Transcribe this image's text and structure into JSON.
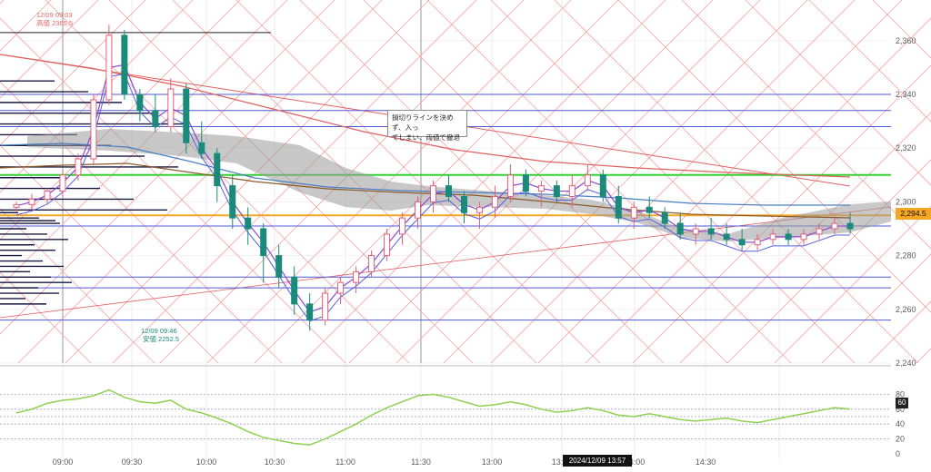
{
  "price_axis_labels": [
    "2,360",
    "2,340",
    "2,320",
    "2,300",
    "2,280",
    "2,260",
    "2,240"
  ],
  "rsi_axis_labels": [
    "80",
    "60",
    "40",
    "20",
    "0"
  ],
  "time_axis_labels": [
    "09:00",
    "09:30",
    "10:00",
    "10:30",
    "11:00",
    "11:30",
    "13:00",
    "13:30",
    "14:00",
    "14:30"
  ],
  "current_price_label": "2,294.5",
  "rsi_current_label": "60",
  "crosshair_time_label": "2024/12/09 13:57",
  "high_annotation": {
    "time": "12/09 09:03",
    "text": "高値 2365.5"
  },
  "low_annotation": {
    "time": "12/09 09:46",
    "text": "安値 2252.5"
  },
  "note": {
    "line1": "損切りラインを決めず、入っ",
    "line2": "てしまい、両値で撤退"
  },
  "colors": {
    "up": "#e0607e",
    "down": "#1a8a7a",
    "bg": "#ffffff",
    "current": "#f5a623",
    "rsi": "#8fd14f"
  },
  "chart_data": {
    "type": "candlestick",
    "ylim": [
      2240,
      2365
    ],
    "rsi_ylim": [
      0,
      100
    ],
    "horizontal_levels": [
      2340,
      2334,
      2328,
      2310,
      2295,
      2291,
      2272,
      2268,
      2256
    ],
    "current_price": 2294.5,
    "candles": [
      [
        2298,
        2300,
        2296,
        2299
      ],
      [
        2299,
        2303,
        2297,
        2301
      ],
      [
        2301,
        2305,
        2299,
        2304
      ],
      [
        2304,
        2312,
        2302,
        2310
      ],
      [
        2310,
        2318,
        2308,
        2316
      ],
      [
        2316,
        2340,
        2314,
        2338
      ],
      [
        2338,
        2366,
        2336,
        2362
      ],
      [
        2362,
        2364,
        2338,
        2340
      ],
      [
        2340,
        2342,
        2330,
        2334
      ],
      [
        2334,
        2340,
        2326,
        2328
      ],
      [
        2328,
        2346,
        2326,
        2342
      ],
      [
        2342,
        2344,
        2318,
        2322
      ],
      [
        2322,
        2330,
        2316,
        2318
      ],
      [
        2318,
        2320,
        2300,
        2306
      ],
      [
        2306,
        2310,
        2290,
        2294
      ],
      [
        2294,
        2298,
        2284,
        2290
      ],
      [
        2290,
        2292,
        2270,
        2280
      ],
      [
        2280,
        2284,
        2268,
        2272
      ],
      [
        2272,
        2276,
        2258,
        2262
      ],
      [
        2262,
        2266,
        2252,
        2256
      ],
      [
        2256,
        2268,
        2254,
        2266
      ],
      [
        2266,
        2272,
        2262,
        2270
      ],
      [
        2270,
        2276,
        2266,
        2274
      ],
      [
        2274,
        2282,
        2272,
        2280
      ],
      [
        2280,
        2290,
        2278,
        2288
      ],
      [
        2288,
        2296,
        2284,
        2294
      ],
      [
        2294,
        2302,
        2290,
        2300
      ],
      [
        2300,
        2308,
        2296,
        2306
      ],
      [
        2306,
        2310,
        2300,
        2302
      ],
      [
        2302,
        2304,
        2292,
        2296
      ],
      [
        2296,
        2300,
        2290,
        2298
      ],
      [
        2298,
        2306,
        2294,
        2302
      ],
      [
        2302,
        2314,
        2300,
        2310
      ],
      [
        2310,
        2312,
        2302,
        2304
      ],
      [
        2304,
        2308,
        2298,
        2306
      ],
      [
        2306,
        2308,
        2300,
        2302
      ],
      [
        2302,
        2310,
        2298,
        2306
      ],
      [
        2306,
        2314,
        2304,
        2310
      ],
      [
        2310,
        2312,
        2300,
        2302
      ],
      [
        2302,
        2306,
        2292,
        2294
      ],
      [
        2294,
        2300,
        2290,
        2298
      ],
      [
        2298,
        2302,
        2294,
        2296
      ],
      [
        2296,
        2298,
        2290,
        2292
      ],
      [
        2292,
        2296,
        2286,
        2288
      ],
      [
        2288,
        2292,
        2284,
        2290
      ],
      [
        2290,
        2294,
        2286,
        2288
      ],
      [
        2288,
        2292,
        2284,
        2286
      ],
      [
        2286,
        2290,
        2282,
        2284
      ],
      [
        2284,
        2288,
        2282,
        2286
      ],
      [
        2286,
        2290,
        2284,
        2288
      ],
      [
        2288,
        2290,
        2284,
        2286
      ],
      [
        2286,
        2290,
        2284,
        2288
      ],
      [
        2288,
        2292,
        2286,
        2290
      ],
      [
        2290,
        2294,
        2288,
        2292
      ],
      [
        2292,
        2296,
        2288,
        2290
      ]
    ],
    "rsi": [
      55,
      60,
      68,
      72,
      74,
      78,
      86,
      76,
      70,
      68,
      72,
      60,
      55,
      48,
      40,
      30,
      22,
      18,
      14,
      12,
      20,
      30,
      40,
      52,
      62,
      70,
      78,
      80,
      76,
      70,
      64,
      66,
      70,
      66,
      60,
      56,
      58,
      62,
      58,
      52,
      50,
      54,
      50,
      46,
      44,
      46,
      48,
      44,
      42,
      46,
      50,
      54,
      58,
      62,
      60
    ]
  }
}
